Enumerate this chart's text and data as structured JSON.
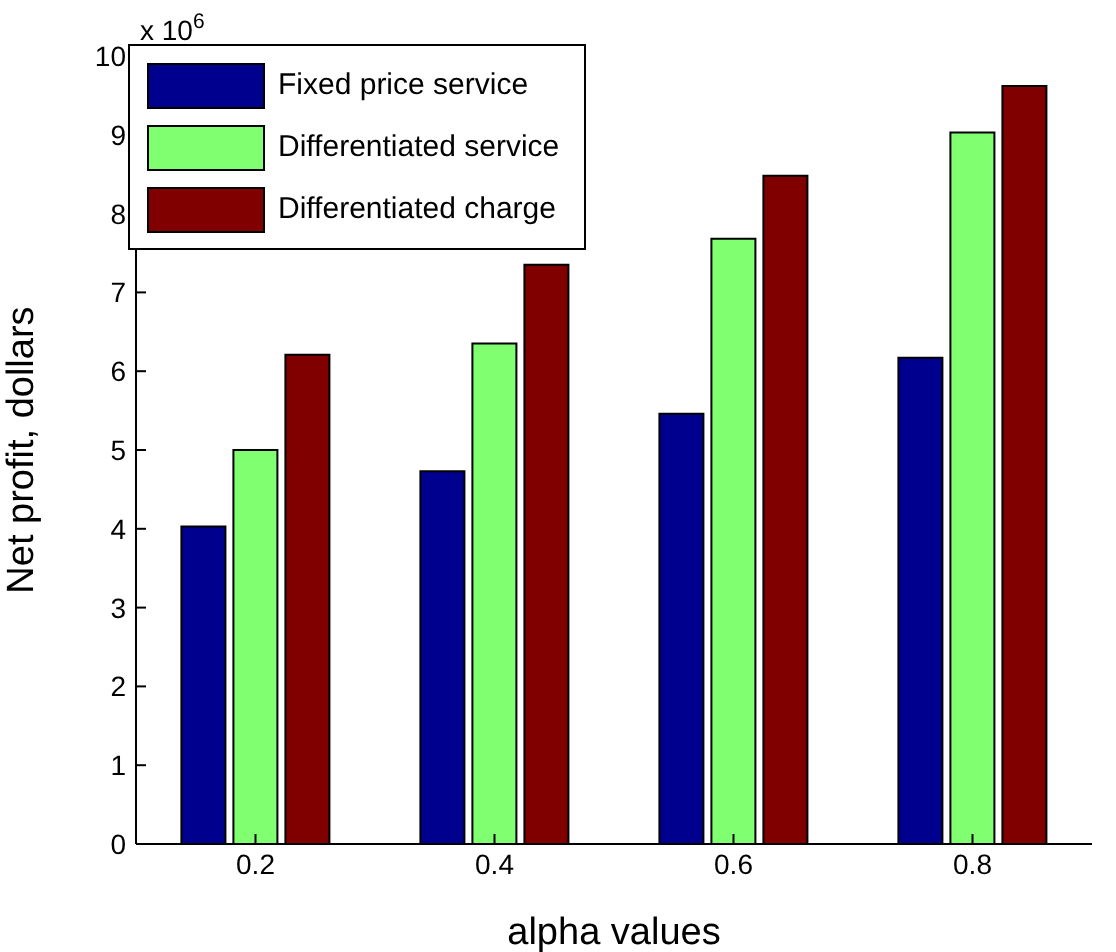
{
  "chart_data": {
    "type": "bar",
    "xlabel": "alpha values",
    "ylabel": "Net profit, dollars",
    "annotations": [
      "x 10$^{6}$"
    ],
    "categories": [
      "0.2",
      "0.4",
      "0.6",
      "0.8"
    ],
    "series": [
      {
        "name": "Fixed price service",
        "color": "#00008f",
        "values": [
          4.03,
          4.73,
          5.46,
          6.17
        ]
      },
      {
        "name": "Differentiated service",
        "color": "#80ff70",
        "values": [
          5.0,
          6.35,
          7.68,
          9.03
        ]
      },
      {
        "name": "Differentiated charge",
        "color": "#800000",
        "values": [
          6.21,
          7.35,
          8.48,
          9.62
        ]
      }
    ],
    "ylim": [
      0,
      10
    ],
    "yticks": [
      0,
      1,
      2,
      3,
      4,
      5,
      6,
      7,
      8,
      9,
      10
    ],
    "grid": false,
    "legend": "top left"
  }
}
